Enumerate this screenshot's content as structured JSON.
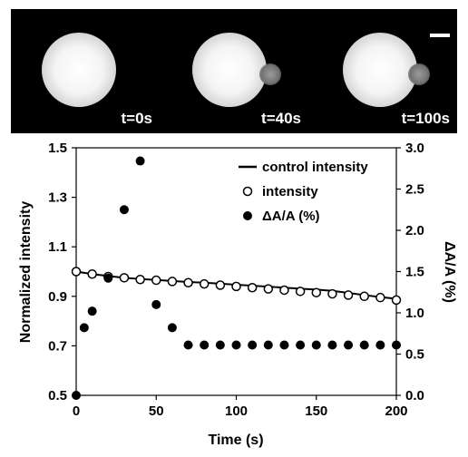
{
  "images": {
    "panels": [
      {
        "label": "t=0s",
        "bleb": false
      },
      {
        "label": "t=40s",
        "bleb": true
      },
      {
        "label": "t=100s",
        "bleb": true
      }
    ]
  },
  "chart_data": {
    "type": "scatter",
    "xlabel": "Time (s)",
    "ylabel": "Normalized intensity",
    "y2label": "ΔA/A (%)",
    "xlim": [
      0,
      200
    ],
    "ylim": [
      0.5,
      1.5
    ],
    "y2lim": [
      0.0,
      3.0
    ],
    "xticks": [
      0,
      50,
      100,
      150,
      200
    ],
    "yticks": [
      0.5,
      0.7,
      0.9,
      1.1,
      1.3,
      1.5
    ],
    "y2ticks": [
      0.0,
      0.5,
      1.0,
      1.5,
      2.0,
      2.5,
      3.0
    ],
    "xtick_labels": [
      "0",
      "50",
      "100",
      "150",
      "200"
    ],
    "ytick_labels": [
      "0.5",
      "0.7",
      "0.9",
      "1.1",
      "1.3",
      "1.5"
    ],
    "y2tick_labels": [
      "0.0",
      "0.5",
      "1.0",
      "1.5",
      "2.0",
      "2.5",
      "3.0"
    ],
    "grid": false,
    "legend_position": "top-right",
    "series": [
      {
        "name": "control intensity",
        "kind": "line",
        "axis": "left",
        "x": [
          0,
          10,
          20,
          30,
          40,
          50,
          60,
          70,
          80,
          90,
          100,
          110,
          120,
          130,
          140,
          150,
          160,
          170,
          180,
          190,
          200
        ],
        "y": [
          1.0,
          0.99,
          0.982,
          0.975,
          0.97,
          0.966,
          0.962,
          0.958,
          0.955,
          0.951,
          0.947,
          0.943,
          0.939,
          0.935,
          0.931,
          0.927,
          0.922,
          0.914,
          0.905,
          0.897,
          0.89
        ]
      },
      {
        "name": "intensity",
        "kind": "open-circle",
        "axis": "left",
        "x": [
          0,
          10,
          20,
          30,
          40,
          50,
          60,
          70,
          80,
          90,
          100,
          110,
          120,
          130,
          140,
          150,
          160,
          170,
          180,
          190,
          200
        ],
        "y": [
          1.0,
          0.99,
          0.98,
          0.975,
          0.968,
          0.965,
          0.96,
          0.955,
          0.95,
          0.945,
          0.94,
          0.935,
          0.93,
          0.925,
          0.92,
          0.915,
          0.91,
          0.905,
          0.9,
          0.895,
          0.885
        ]
      },
      {
        "name": "ΔA/A (%)",
        "kind": "filled-circle",
        "axis": "right",
        "x": [
          0,
          5,
          10,
          20,
          30,
          40,
          50,
          60,
          70,
          80,
          90,
          100,
          110,
          120,
          130,
          140,
          150,
          160,
          170,
          180,
          190,
          200
        ],
        "y": [
          0.0,
          0.82,
          1.02,
          1.42,
          2.25,
          2.84,
          1.1,
          0.82,
          0.61,
          0.61,
          0.61,
          0.61,
          0.61,
          0.61,
          0.61,
          0.61,
          0.61,
          0.61,
          0.61,
          0.61,
          0.61,
          0.61
        ]
      }
    ]
  }
}
